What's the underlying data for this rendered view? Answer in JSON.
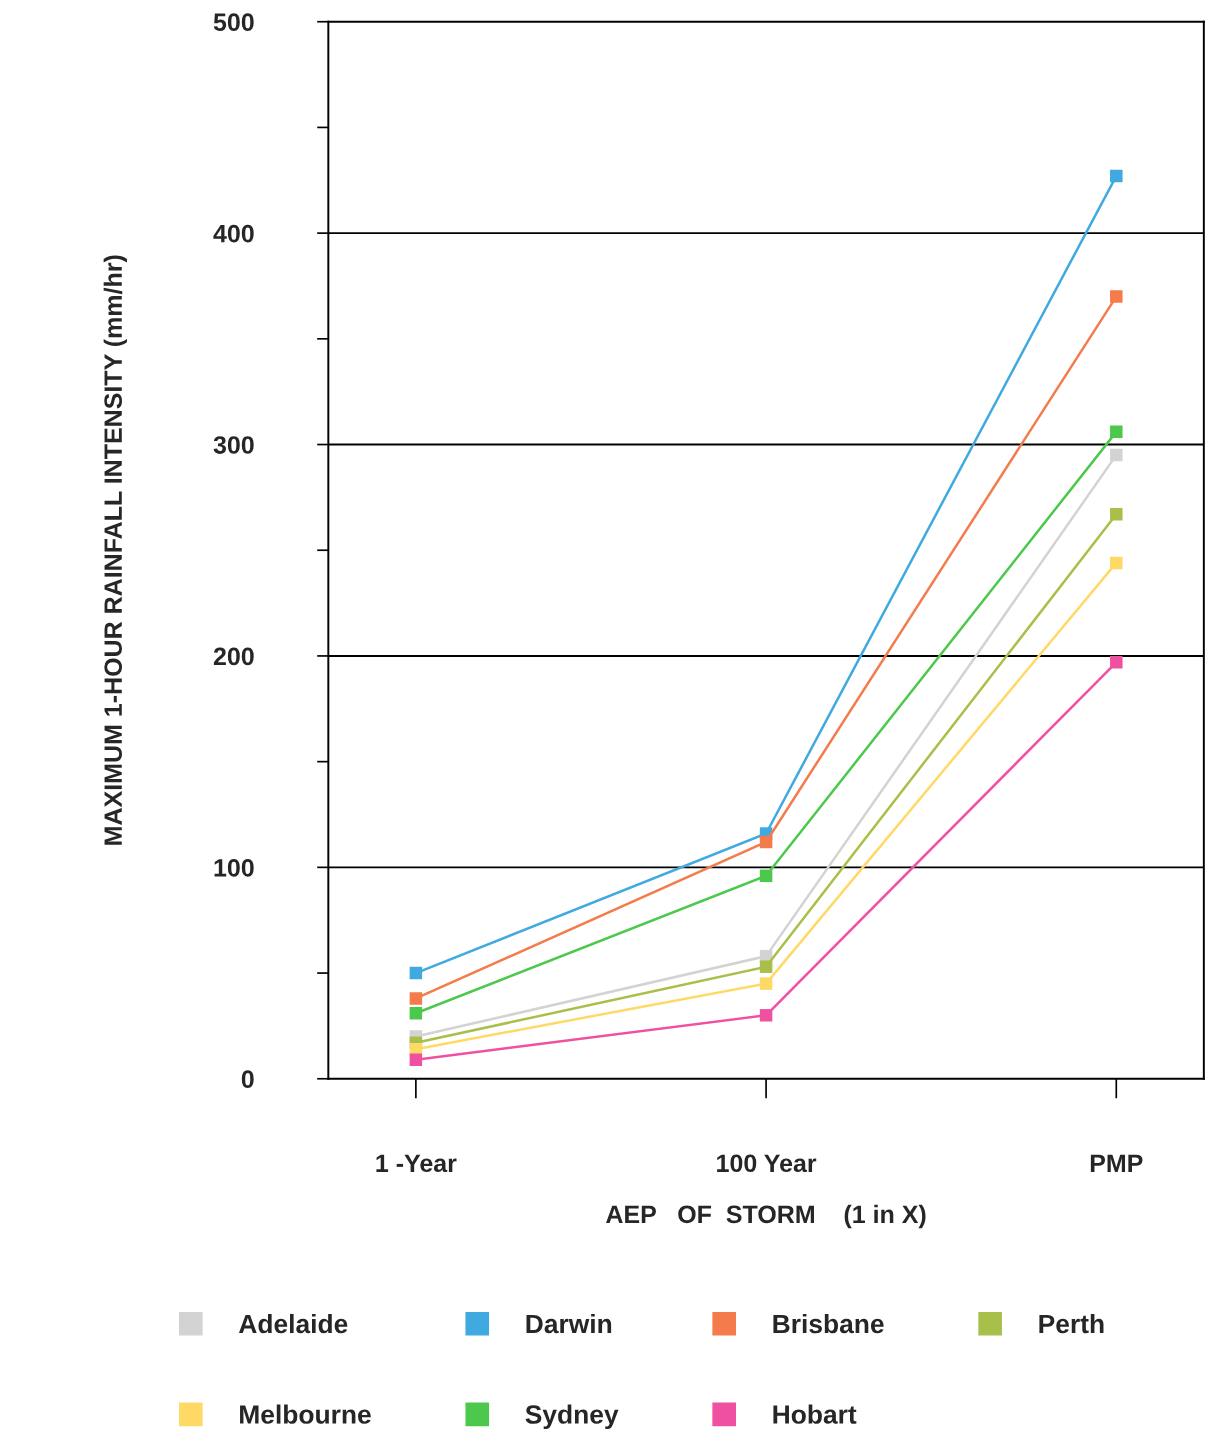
{
  "chart_data": {
    "type": "line",
    "xlabel": "AEP   OF  STORM    (1 in X)",
    "ylabel": "MAXIMUM 1-HOUR RAINFALL INTENSITY (mm/hr)",
    "categories": [
      "1 -Year",
      "100 Year",
      "PMP"
    ],
    "series": [
      {
        "name": "Adelaide",
        "color": "#d3d3d3",
        "values": [
          20,
          58,
          295
        ]
      },
      {
        "name": "Darwin",
        "color": "#3fa9e0",
        "values": [
          50,
          116,
          427
        ]
      },
      {
        "name": "Brisbane",
        "color": "#f47b4c",
        "values": [
          38,
          112,
          370
        ]
      },
      {
        "name": "Perth",
        "color": "#a8c04a",
        "values": [
          17,
          53,
          267
        ]
      },
      {
        "name": "Melbourne",
        "color": "#ffd966",
        "values": [
          14,
          45,
          244
        ]
      },
      {
        "name": "Sydney",
        "color": "#4cc94c",
        "values": [
          31,
          96,
          306
        ]
      },
      {
        "name": "Hobart",
        "color": "#f050a0",
        "values": [
          9,
          30,
          197
        ]
      }
    ],
    "ylim": [
      0,
      500
    ],
    "yticks": [
      0,
      {
        "value": 50,
        "label": null
      },
      100,
      {
        "value": 150,
        "label": null
      },
      200,
      {
        "value": 250,
        "label": null
      },
      300,
      {
        "value": 350,
        "label": null
      },
      400,
      {
        "value": 450,
        "label": null
      },
      500
    ],
    "grid": "y",
    "legend": "bottom",
    "marker": "square",
    "line_style": "solid"
  }
}
